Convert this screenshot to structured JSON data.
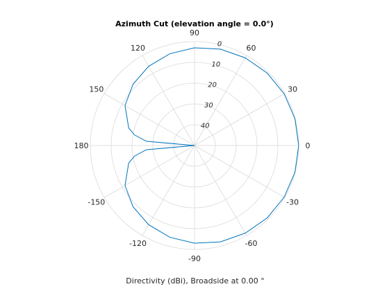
{
  "chart_data": {
    "type": "line",
    "coordinate_system": "polar",
    "title": "Azimuth Cut (elevation angle = 0.0°)",
    "xlabel": "Directivity (dBi), Broadside at 0.00 °",
    "angle_ticks": [
      0,
      30,
      60,
      90,
      120,
      150,
      180,
      -150,
      -120,
      -90,
      -60,
      -30
    ],
    "angle_tick_values_deg": [
      0,
      30,
      60,
      90,
      120,
      150,
      180,
      210,
      240,
      270,
      300,
      330
    ],
    "angle_zero_location": "right",
    "angle_direction": "counterclockwise",
    "radial_ticks": [
      0,
      10,
      20,
      30,
      40
    ],
    "radial_tick_values": [
      0,
      -10,
      -20,
      -30,
      -40
    ],
    "radial_limits": [
      -50,
      0
    ],
    "radial_tick_label_angle_deg": 80,
    "grid": true,
    "series": [
      {
        "color": "#0072bd",
        "x": [
          0,
          15,
          30,
          45,
          60,
          75,
          90,
          105,
          120,
          135,
          150,
          165,
          170,
          175,
          180,
          185,
          190,
          195,
          210,
          225,
          240,
          255,
          270,
          285,
          300,
          315,
          330,
          345,
          360
        ],
        "y": [
          0,
          -0.1,
          -0.3,
          -0.7,
          -1.3,
          -2.0,
          -3.0,
          -4.3,
          -6.0,
          -8.3,
          -11.5,
          -17.3,
          -20.8,
          -26.8,
          -50,
          -26.8,
          -20.8,
          -17.3,
          -11.5,
          -8.3,
          -6.0,
          -4.3,
          -3.0,
          -2.0,
          -1.3,
          -0.7,
          -0.3,
          -0.1,
          0
        ]
      }
    ]
  }
}
